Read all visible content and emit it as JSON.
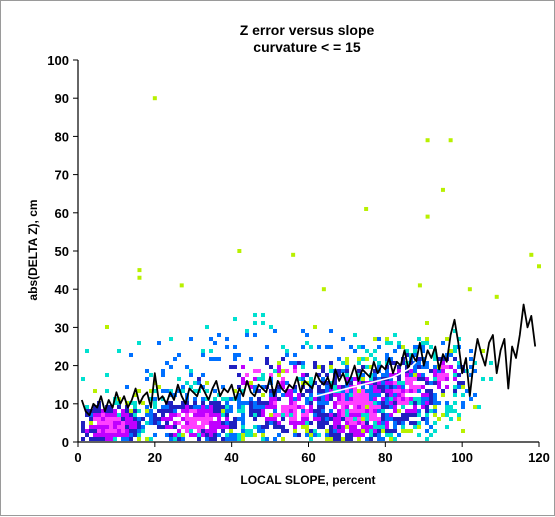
{
  "chart_data": {
    "type": "scatter",
    "title": "Z error versus slope",
    "subtitle": "curvature < = 15",
    "xlabel": "LOCAL SLOPE, percent",
    "ylabel": "abs(DELTA Z), cm",
    "xlim": [
      0,
      120
    ],
    "ylim": [
      0,
      100
    ],
    "x_ticks": [
      "0",
      "20",
      "40",
      "60",
      "80",
      "100",
      "120"
    ],
    "y_ticks": [
      "0",
      "10",
      "20",
      "30",
      "40",
      "50",
      "60",
      "70",
      "80",
      "90",
      "100"
    ],
    "grid": false,
    "density_colors": [
      "#b8f000",
      "#00e0d0",
      "#0070ff",
      "#2020c0",
      "#c000ff",
      "#ff40ff"
    ],
    "outliers": [
      {
        "x": 20,
        "y": 90
      },
      {
        "x": 91,
        "y": 79
      },
      {
        "x": 97,
        "y": 79
      },
      {
        "x": 95,
        "y": 66
      },
      {
        "x": 75,
        "y": 61
      },
      {
        "x": 91,
        "y": 59
      },
      {
        "x": 42,
        "y": 50
      },
      {
        "x": 56,
        "y": 49
      },
      {
        "x": 16,
        "y": 45
      },
      {
        "x": 16,
        "y": 43
      },
      {
        "x": 27,
        "y": 41
      },
      {
        "x": 89,
        "y": 41
      },
      {
        "x": 64,
        "y": 40
      },
      {
        "x": 118,
        "y": 49
      },
      {
        "x": 120,
        "y": 46
      },
      {
        "x": 102,
        "y": 40
      },
      {
        "x": 109,
        "y": 38
      }
    ],
    "series": [
      {
        "color": "#000000",
        "x": [
          1,
          2,
          3,
          4,
          5,
          6,
          7,
          8,
          9,
          10,
          11,
          12,
          13,
          14,
          15,
          16,
          17,
          18,
          19,
          20,
          21,
          22,
          23,
          24,
          25,
          26,
          27,
          28,
          29,
          30,
          31,
          32,
          33,
          34,
          35,
          36,
          37,
          38,
          39,
          40,
          41,
          42,
          43,
          44,
          45,
          46,
          47,
          48,
          49,
          50,
          51,
          52,
          53,
          54,
          55,
          56,
          57,
          58,
          59,
          60,
          61,
          62,
          63,
          64,
          65,
          66,
          67,
          68,
          69,
          70,
          71,
          72,
          73,
          74,
          75,
          76,
          77,
          78,
          79,
          80,
          81,
          82,
          83,
          84,
          85,
          86,
          87,
          88,
          89,
          90,
          91,
          92,
          93,
          94,
          95,
          96,
          97,
          98,
          99,
          100,
          101,
          102,
          103,
          104,
          105,
          106,
          107,
          108,
          109,
          110,
          111,
          112,
          113,
          114,
          115,
          116,
          117,
          118,
          119
        ],
        "values": [
          11,
          8,
          7,
          10,
          9,
          12,
          8,
          11,
          9,
          13,
          10,
          12,
          9,
          11,
          14,
          10,
          12,
          13,
          9,
          18,
          11,
          12,
          10,
          13,
          11,
          15,
          12,
          10,
          14,
          13,
          12,
          15,
          13,
          11,
          14,
          16,
          12,
          14,
          13,
          15,
          11,
          14,
          12,
          16,
          13,
          12,
          15,
          14,
          13,
          17,
          12,
          16,
          14,
          13,
          15,
          14,
          17,
          13,
          16,
          15,
          14,
          18,
          16,
          15,
          17,
          14,
          19,
          16,
          18,
          15,
          17,
          20,
          16,
          19,
          18,
          17,
          21,
          18,
          20,
          19,
          22,
          18,
          21,
          20,
          24,
          19,
          23,
          21,
          26,
          20,
          24,
          22,
          25,
          19,
          23,
          21,
          28,
          32,
          26,
          18,
          22,
          12,
          21,
          27,
          23,
          20,
          26,
          28,
          18,
          24,
          27,
          14,
          25,
          22,
          28,
          36,
          30,
          33,
          25
        ]
      },
      {
        "color": "#ffffff",
        "x": [
          62,
          66,
          70,
          74,
          78,
          82,
          86,
          88
        ],
        "values": [
          12,
          13,
          14,
          15,
          16,
          17,
          19,
          21
        ]
      }
    ]
  }
}
